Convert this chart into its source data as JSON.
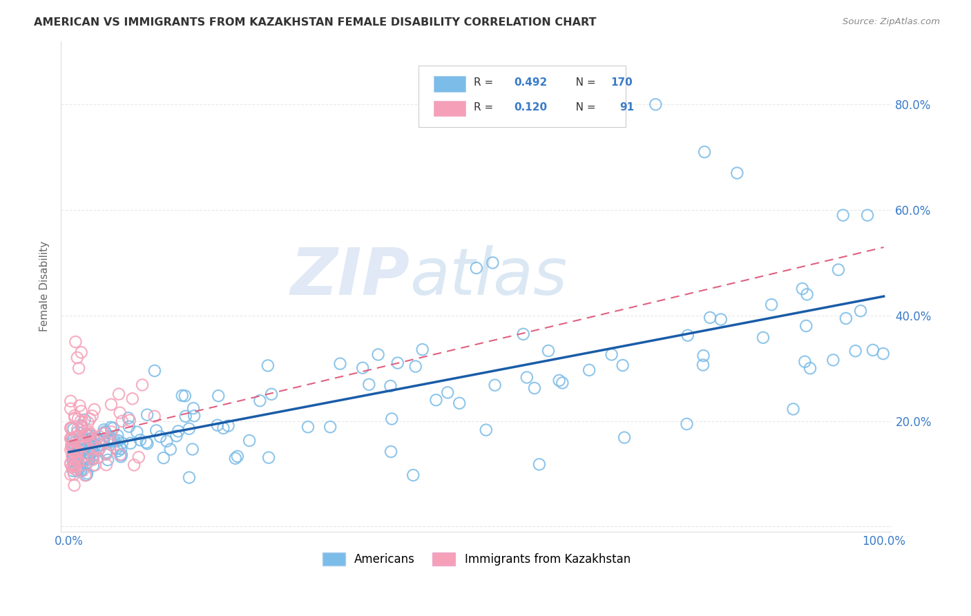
{
  "title": "AMERICAN VS IMMIGRANTS FROM KAZAKHSTAN FEMALE DISABILITY CORRELATION CHART",
  "source": "Source: ZipAtlas.com",
  "ylabel": "Female Disability",
  "blue_color": "#7bbce8",
  "blue_edge_color": "#7bbce8",
  "blue_line_color": "#1a5ca8",
  "pink_color": "#f5a0b8",
  "pink_edge_color": "#f5a0b8",
  "pink_line_color": "#e06080",
  "R_blue": 0.492,
  "N_blue": 170,
  "R_pink": 0.12,
  "N_pink": 91,
  "legend_label_blue": "Americans",
  "legend_label_pink": "Immigrants from Kazakhstan",
  "watermark_zip": "ZIP",
  "watermark_atlas": "atlas",
  "background_color": "#ffffff",
  "grid_color": "#e0e0e0",
  "tick_color": "#3a7bc8",
  "ylabel_color": "#666666",
  "title_color": "#333333",
  "source_color": "#888888"
}
